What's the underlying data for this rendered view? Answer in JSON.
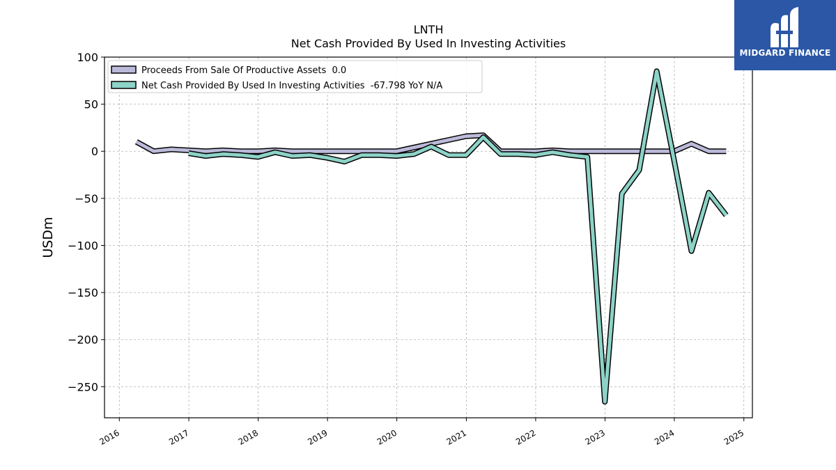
{
  "logo": {
    "text": "MIDGARD FINANCE",
    "background": "#2b57a6"
  },
  "chart_data": {
    "type": "line",
    "title": "LNTH",
    "subtitle": "Net Cash Provided By Used In Investing Activities",
    "ylabel": "USDm",
    "xlabel": "",
    "xlim": [
      "2015-10-15",
      "2025-02-15"
    ],
    "ylim": [
      -283,
      100
    ],
    "x_ticks": [
      "2016",
      "2017",
      "2018",
      "2019",
      "2020",
      "2021",
      "2022",
      "2023",
      "2024",
      "2025"
    ],
    "y_ticks": [
      100,
      50,
      0,
      -50,
      -100,
      -150,
      -200,
      -250
    ],
    "grid": true,
    "legend_position": "top-left",
    "series": [
      {
        "name": "Proceeds From Sale Of Productive Assets",
        "legend_label": "Proceeds From Sale Of Productive Assets  0.0",
        "color": "#bcbad9",
        "x": [
          "2016-03-31",
          "2016-06-30",
          "2016-09-30",
          "2016-12-31",
          "2017-03-31",
          "2017-06-30",
          "2017-09-30",
          "2017-12-31",
          "2018-03-31",
          "2018-06-30",
          "2018-09-30",
          "2018-12-31",
          "2019-03-31",
          "2019-06-30",
          "2019-09-30",
          "2019-12-31",
          "2020-03-31",
          "2020-06-30",
          "2020-09-30",
          "2020-12-31",
          "2021-03-31",
          "2021-06-30",
          "2021-09-30",
          "2021-12-31",
          "2022-03-31",
          "2022-06-30",
          "2022-09-30",
          "2022-12-31",
          "2023-03-31",
          "2023-06-30",
          "2023-09-30",
          "2023-12-31",
          "2024-03-31",
          "2024-06-30",
          "2024-09-30"
        ],
        "values": [
          10,
          0,
          2,
          1,
          0,
          1,
          0,
          0,
          1,
          0,
          0,
          0,
          0,
          0,
          0,
          0,
          4,
          8,
          12,
          16,
          17,
          0,
          0,
          0,
          1,
          0,
          0,
          0,
          0,
          0,
          0,
          0,
          8,
          0,
          0
        ]
      },
      {
        "name": "Net Cash Provided By Used In Investing Activities",
        "legend_label": "Net Cash Provided By Used In Investing Activities  -67.798 YoY N/A",
        "color": "#8dd3c7",
        "x": [
          "2016-12-31",
          "2017-03-31",
          "2017-06-30",
          "2017-09-30",
          "2017-12-31",
          "2018-03-31",
          "2018-06-30",
          "2018-09-30",
          "2018-12-31",
          "2019-03-31",
          "2019-06-30",
          "2019-09-30",
          "2019-12-31",
          "2020-03-31",
          "2020-06-30",
          "2020-09-30",
          "2020-12-31",
          "2021-03-31",
          "2021-06-30",
          "2021-09-30",
          "2021-12-31",
          "2022-03-31",
          "2022-06-30",
          "2022-09-30",
          "2022-12-31",
          "2023-03-31",
          "2023-06-30",
          "2023-09-30",
          "2023-12-31",
          "2024-03-31",
          "2024-06-30",
          "2024-09-30"
        ],
        "values": [
          -2,
          -5,
          -3,
          -4,
          -6,
          -1,
          -5,
          -4,
          -7,
          -11,
          -4,
          -4,
          -5,
          -3,
          5,
          -4,
          -4,
          15,
          -3,
          -3,
          -4,
          -1,
          -4,
          -6,
          -266,
          -45,
          -20,
          85,
          -10,
          -106,
          -44,
          -68
        ]
      }
    ]
  }
}
